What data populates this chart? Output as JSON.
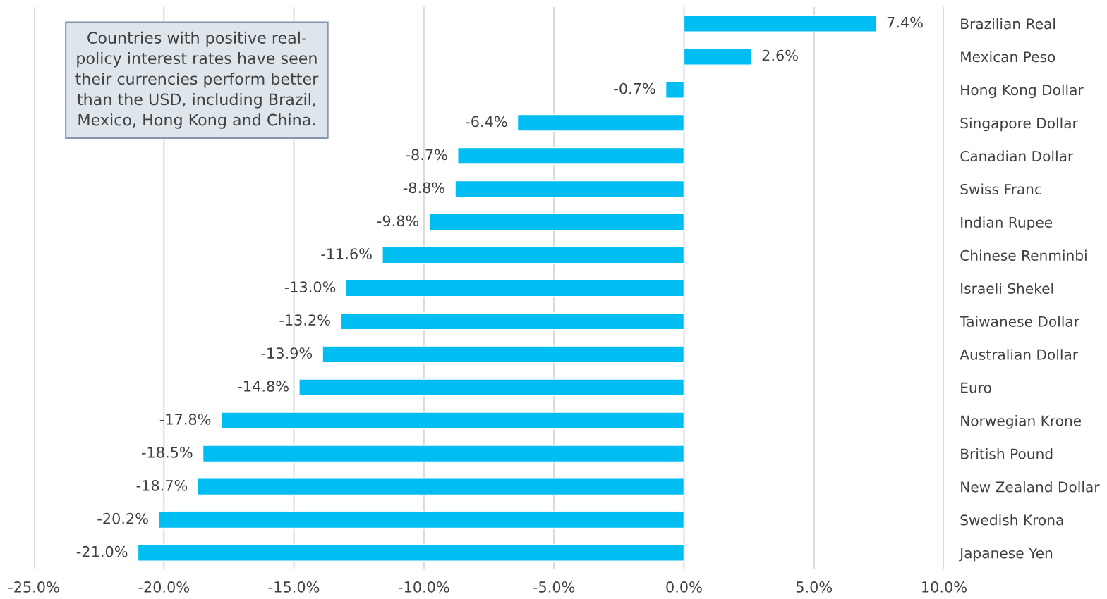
{
  "chart_data": {
    "type": "bar",
    "orientation": "horizontal",
    "categories": [
      "Brazilian Real",
      "Mexican Peso",
      "Hong Kong Dollar",
      "Singapore Dollar",
      "Canadian Dollar",
      "Swiss Franc",
      "Indian Rupee",
      "Chinese Renminbi",
      "Israeli Shekel",
      "Taiwanese Dollar",
      "Australian Dollar",
      "Euro",
      "Norwegian Krone",
      "British Pound",
      "New Zealand Dollar",
      "Swedish Krona",
      "Japanese Yen"
    ],
    "values": [
      7.4,
      2.6,
      -0.7,
      -6.4,
      -8.7,
      -8.8,
      -9.8,
      -11.6,
      -13.0,
      -13.2,
      -13.9,
      -14.8,
      -17.8,
      -18.5,
      -18.7,
      -20.2,
      -21.0
    ],
    "value_labels": [
      "7.4%",
      "2.6%",
      "-0.7%",
      "-6.4%",
      "-8.7%",
      "-8.8%",
      "-9.8%",
      "-11.6%",
      "-13.0%",
      "-13.2%",
      "-13.9%",
      "-14.8%",
      "-17.8%",
      "-18.5%",
      "-18.7%",
      "-20.2%",
      "-21.0%"
    ],
    "color": "#00bdf2",
    "xlim": [
      -25,
      10
    ],
    "xticks": [
      {
        "value": -25,
        "label": "-25.0%"
      },
      {
        "value": -20,
        "label": "-20.0%"
      },
      {
        "value": -15,
        "label": "-15.0%"
      },
      {
        "value": -10,
        "label": "-10.0%"
      },
      {
        "value": -5,
        "label": "-5.0%"
      },
      {
        "value": 0,
        "label": "0.0%"
      },
      {
        "value": 5,
        "label": "5.0%"
      },
      {
        "value": 10,
        "label": "10.0%"
      }
    ],
    "grid": "x",
    "legend": false,
    "annotations": [
      "Countries with positive real-\npolicy interest rates have seen\ntheir currencies perform better\nthan the USD, including Brazil,\nMexico, Hong Kong and China."
    ]
  }
}
